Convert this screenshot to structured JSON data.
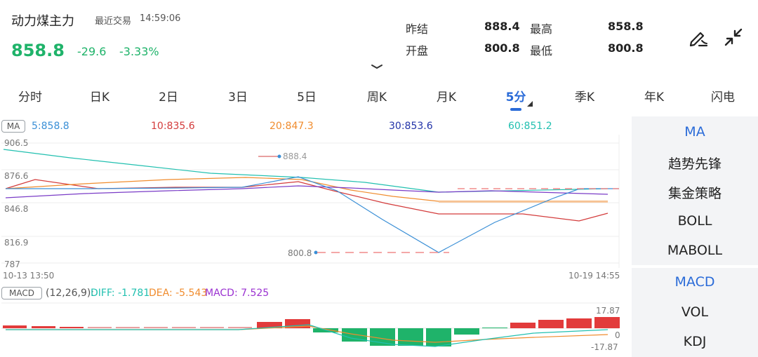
{
  "header": {
    "title": "动力煤主力",
    "last_trade_label": "最近交易",
    "last_trade_time": "14:59:06",
    "price": "858.8",
    "change_abs": "-29.6",
    "change_pct": "-3.33%",
    "stats": {
      "prev_settle_label": "昨结",
      "prev_settle_value": "888.4",
      "high_label": "最高",
      "high_value": "858.8",
      "open_label": "开盘",
      "open_value": "800.8",
      "low_label": "最低",
      "low_value": "800.8"
    },
    "icons": [
      "draw-pen-icon",
      "collapse-icon"
    ]
  },
  "tabs": [
    {
      "label": "分时"
    },
    {
      "label": "日K"
    },
    {
      "label": "2日"
    },
    {
      "label": "3日"
    },
    {
      "label": "5日"
    },
    {
      "label": "周K"
    },
    {
      "label": "月K"
    },
    {
      "label": "5分",
      "active": true
    },
    {
      "label": "季K"
    },
    {
      "label": "年K"
    },
    {
      "label": "闪电"
    }
  ],
  "ma_bar": {
    "badge": "MA",
    "ma5": "5:858.8",
    "ma10": "10:835.6",
    "ma20": "20:847.3",
    "ma30": "30:853.6",
    "ma60": "60:851.2"
  },
  "colors": {
    "up": "#e23b3b",
    "down": "#1fb36a",
    "accent": "#2a6bd8",
    "ma5": "#3a8fd6",
    "ma10": "#d33b3b",
    "ma20": "#f08c2e",
    "ma30": "#2233a8",
    "ma60": "#22c0b0",
    "purple": "#9b32d1"
  },
  "price_chart": {
    "y_ticks": [
      "906.5",
      "876.6",
      "846.8",
      "816.9",
      "787"
    ],
    "x_start": "10-13 13:50",
    "x_end": "10-19 14:55",
    "high_marker": "888.4",
    "low_marker": "800.8"
  },
  "macd_bar": {
    "badge": "MACD",
    "params": "(12,26,9):",
    "diff": "DIFF: -1.781",
    "dea": "DEA: -5.543",
    "macd": "MACD: 7.525"
  },
  "macd_chart": {
    "y_top": "17.87",
    "y_zero": "0",
    "y_bottom": "-17.87"
  },
  "side_panel": {
    "group1": [
      "MA",
      "趋势先锋",
      "集金策略",
      "BOLL",
      "MABOLL"
    ],
    "group2": [
      "MACD",
      "VOL",
      "KDJ"
    ]
  }
}
